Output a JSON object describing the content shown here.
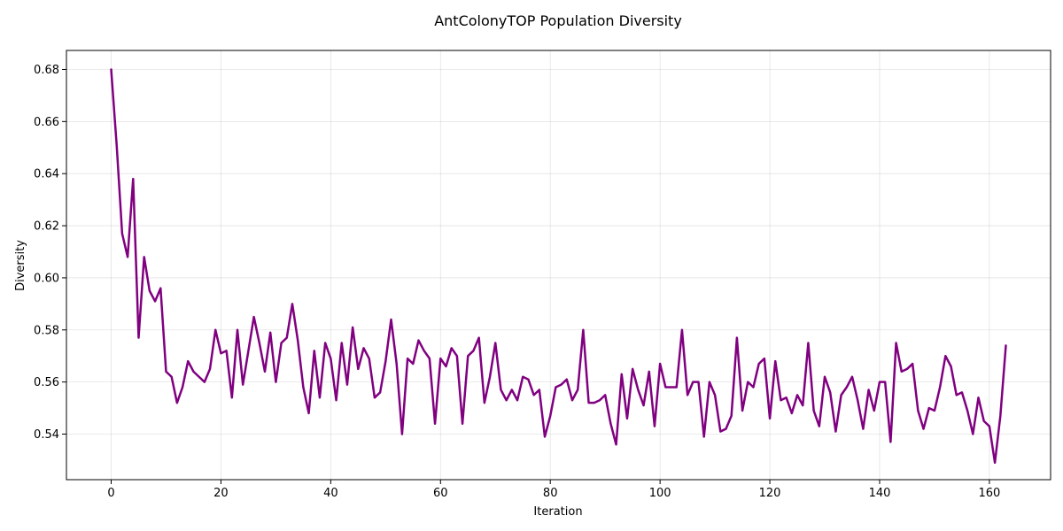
{
  "chart_data": {
    "type": "line",
    "title": "AntColonyTOP Population Diversity",
    "xlabel": "Iteration",
    "ylabel": "Diversity",
    "xlim": [
      -8.15,
      171.15
    ],
    "ylim": [
      0.5225,
      0.6873
    ],
    "xticks": [
      0,
      20,
      40,
      60,
      80,
      100,
      120,
      140,
      160
    ],
    "yticks": [
      0.54,
      0.56,
      0.58,
      0.6,
      0.62,
      0.64,
      0.66,
      0.68
    ],
    "ytick_labels": [
      "0.54",
      "0.56",
      "0.58",
      "0.60",
      "0.62",
      "0.64",
      "0.66",
      "0.68"
    ],
    "grid": true,
    "legend": "none",
    "series": [
      {
        "color": "#800080",
        "values": [
          0.68,
          0.651,
          0.617,
          0.608,
          0.638,
          0.577,
          0.608,
          0.595,
          0.591,
          0.596,
          0.564,
          0.562,
          0.552,
          0.558,
          0.568,
          0.564,
          0.562,
          0.56,
          0.565,
          0.58,
          0.571,
          0.572,
          0.554,
          0.58,
          0.559,
          0.572,
          0.585,
          0.575,
          0.564,
          0.579,
          0.56,
          0.575,
          0.577,
          0.59,
          0.576,
          0.558,
          0.548,
          0.572,
          0.554,
          0.575,
          0.569,
          0.553,
          0.575,
          0.559,
          0.581,
          0.565,
          0.573,
          0.569,
          0.554,
          0.556,
          0.568,
          0.584,
          0.567,
          0.54,
          0.569,
          0.567,
          0.576,
          0.572,
          0.569,
          0.544,
          0.569,
          0.566,
          0.573,
          0.57,
          0.544,
          0.57,
          0.572,
          0.577,
          0.552,
          0.562,
          0.575,
          0.557,
          0.553,
          0.557,
          0.553,
          0.562,
          0.561,
          0.555,
          0.557,
          0.539,
          0.547,
          0.558,
          0.559,
          0.561,
          0.553,
          0.557,
          0.58,
          0.552,
          0.552,
          0.553,
          0.555,
          0.544,
          0.536,
          0.563,
          0.546,
          0.565,
          0.557,
          0.551,
          0.564,
          0.543,
          0.567,
          0.558,
          0.558,
          0.558,
          0.58,
          0.555,
          0.56,
          0.56,
          0.539,
          0.56,
          0.555,
          0.541,
          0.542,
          0.547,
          0.577,
          0.549,
          0.56,
          0.558,
          0.567,
          0.569,
          0.546,
          0.568,
          0.553,
          0.554,
          0.548,
          0.555,
          0.551,
          0.575,
          0.549,
          0.543,
          0.562,
          0.556,
          0.541,
          0.555,
          0.558,
          0.562,
          0.553,
          0.542,
          0.557,
          0.549,
          0.56,
          0.56,
          0.537,
          0.575,
          0.564,
          0.565,
          0.567,
          0.549,
          0.542,
          0.55,
          0.549,
          0.558,
          0.57,
          0.566,
          0.555,
          0.556,
          0.549,
          0.54,
          0.554,
          0.545,
          0.543,
          0.529,
          0.547,
          0.574
        ]
      }
    ]
  }
}
